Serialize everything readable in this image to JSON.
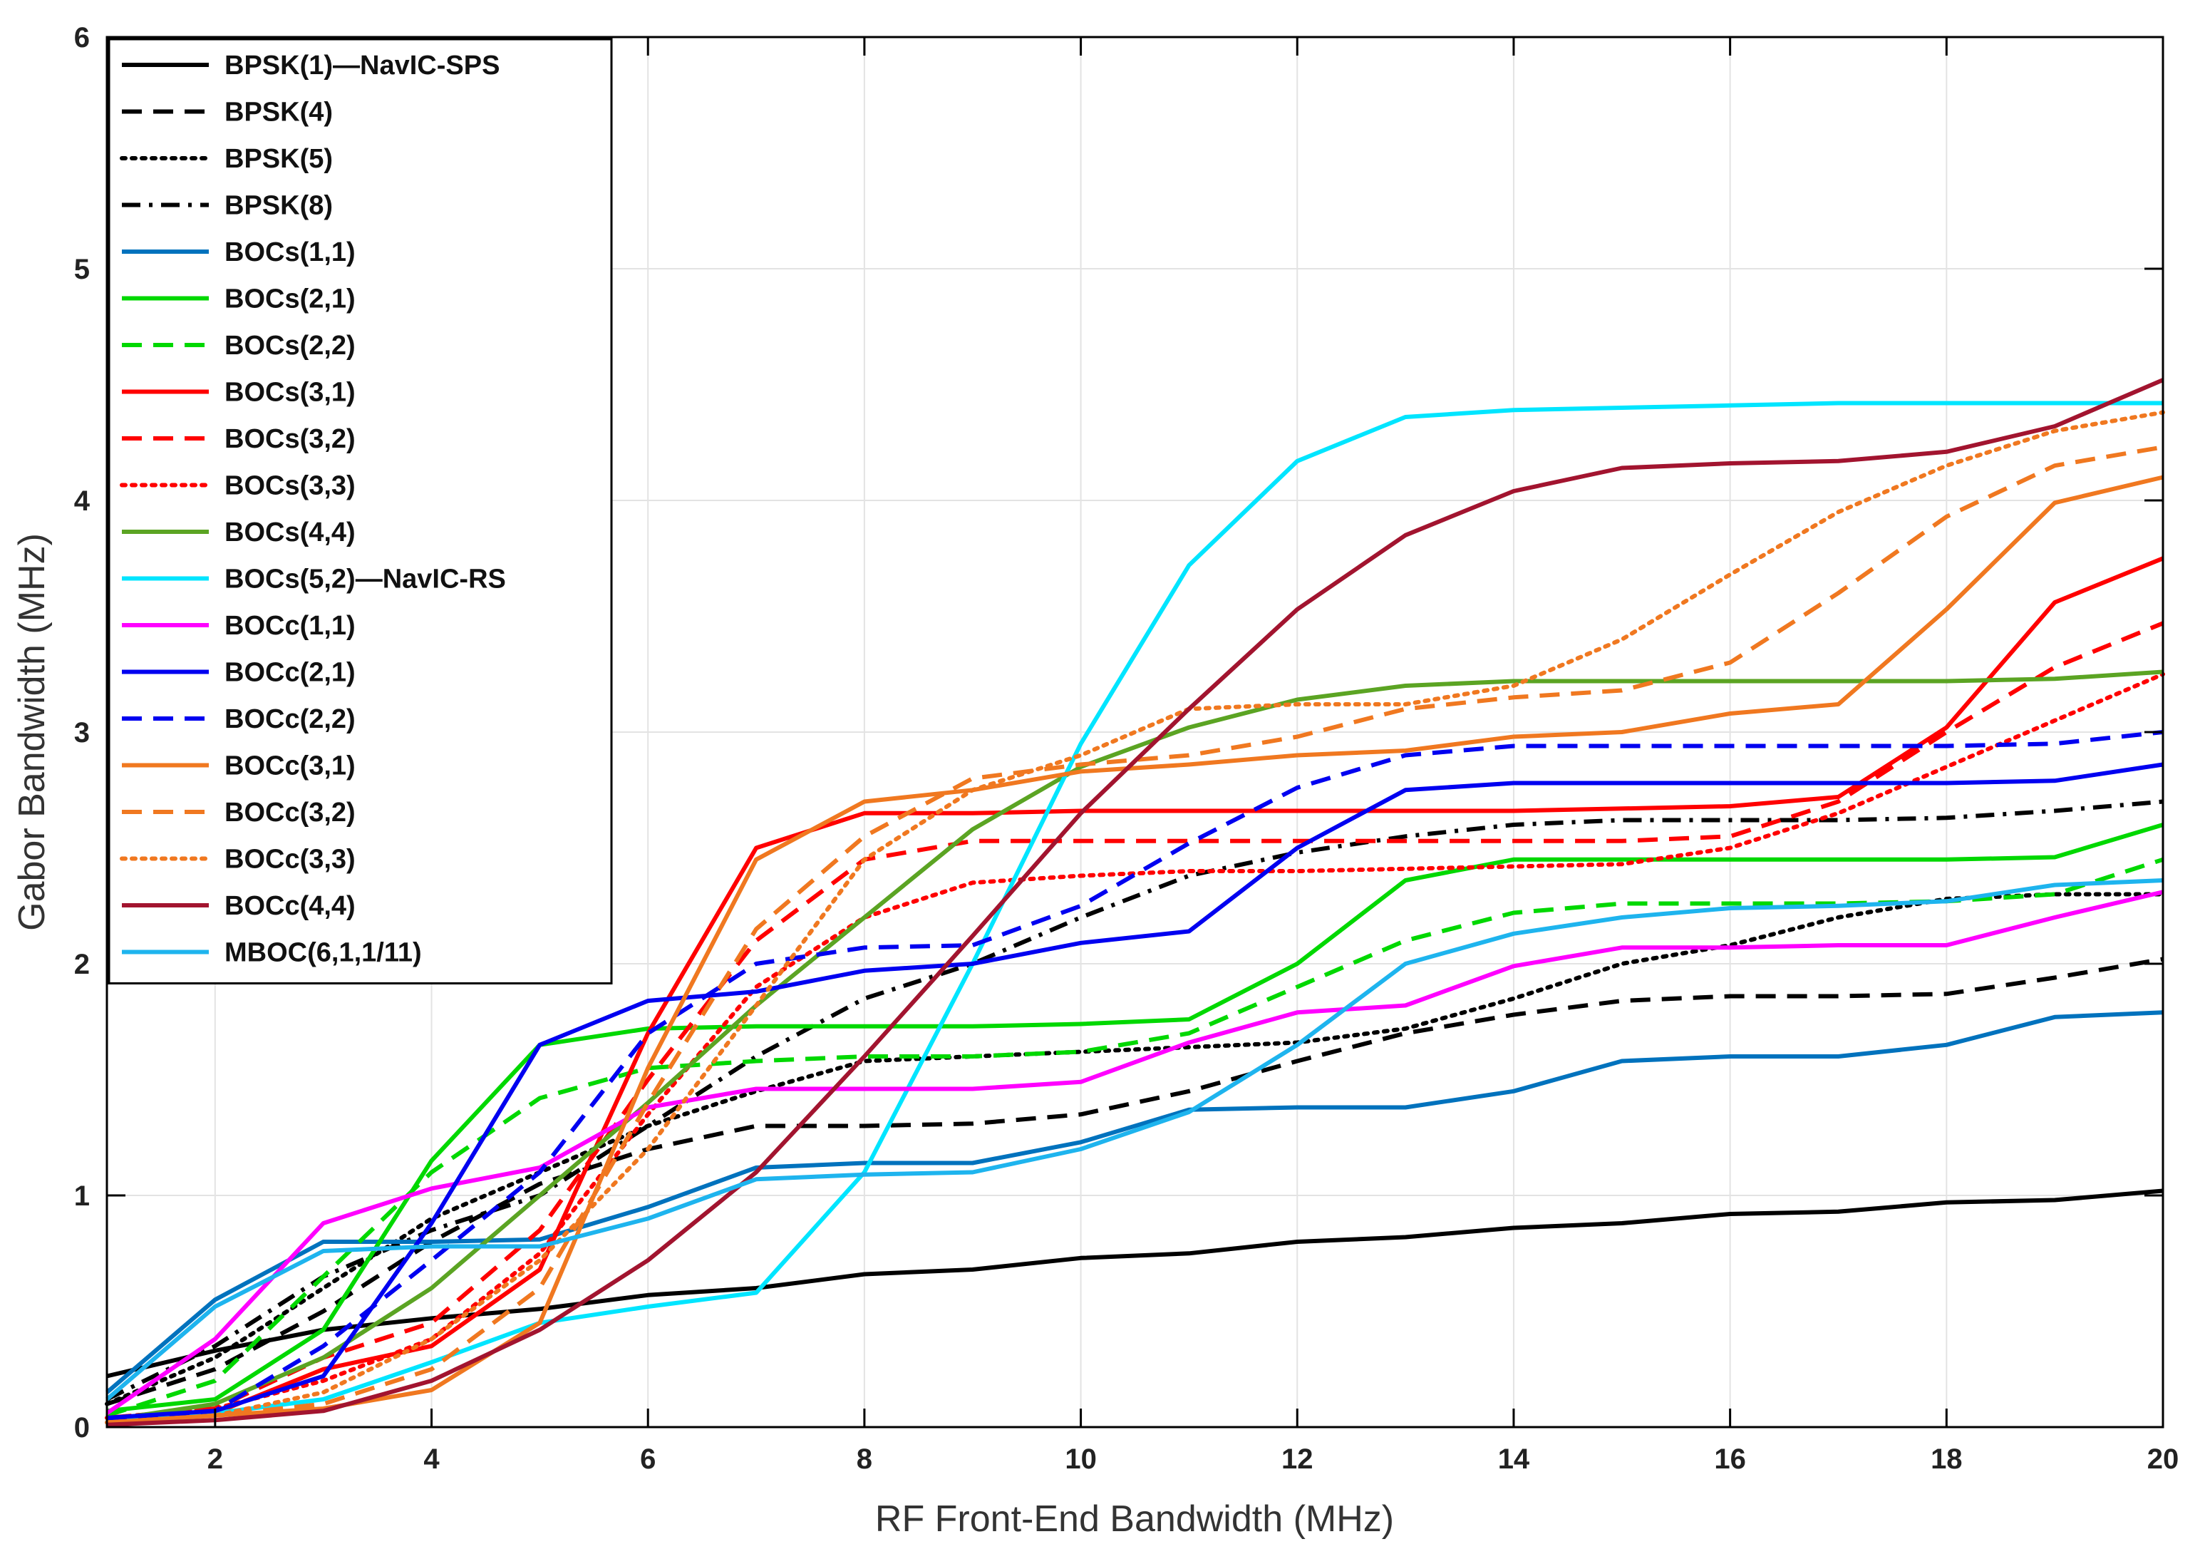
{
  "chart_data": {
    "type": "line",
    "title": "",
    "xlabel": "RF Front-End Bandwidth (MHz)",
    "ylabel": "Gabor Bandwidth (MHz)",
    "xlim": [
      1,
      20
    ],
    "ylim": [
      0,
      6
    ],
    "xticks": [
      2,
      4,
      6,
      8,
      10,
      12,
      14,
      16,
      18,
      20
    ],
    "yticks": [
      0,
      1,
      2,
      3,
      4,
      5,
      6
    ],
    "grid": true,
    "legend_position": "top-left",
    "x": [
      1,
      2,
      3,
      4,
      5,
      6,
      7,
      8,
      9,
      10,
      11,
      12,
      13,
      14,
      15,
      16,
      17,
      18,
      19,
      20
    ],
    "series": [
      {
        "name": "BPSK(1)—NavIC-SPS",
        "color": "#000000",
        "dash": "solid",
        "values": [
          0.22,
          0.33,
          0.42,
          0.47,
          0.51,
          0.57,
          0.6,
          0.66,
          0.68,
          0.73,
          0.75,
          0.8,
          0.82,
          0.86,
          0.88,
          0.92,
          0.93,
          0.97,
          0.98,
          1.02
        ]
      },
      {
        "name": "BPSK(4)",
        "color": "#000000",
        "dash": "dashed",
        "values": [
          0.1,
          0.25,
          0.5,
          0.8,
          1.05,
          1.2,
          1.3,
          1.3,
          1.31,
          1.35,
          1.45,
          1.58,
          1.7,
          1.78,
          1.84,
          1.86,
          1.86,
          1.87,
          1.94,
          2.02
        ]
      },
      {
        "name": "BPSK(5)",
        "color": "#000000",
        "dash": "dotted",
        "values": [
          0.1,
          0.3,
          0.6,
          0.9,
          1.1,
          1.3,
          1.45,
          1.58,
          1.6,
          1.62,
          1.64,
          1.66,
          1.72,
          1.85,
          2.0,
          2.08,
          2.2,
          2.28,
          2.3,
          2.3
        ]
      },
      {
        "name": "BPSK(8)",
        "color": "#000000",
        "dash": "dashdot",
        "values": [
          0.12,
          0.35,
          0.65,
          0.85,
          1.0,
          1.3,
          1.6,
          1.85,
          2.0,
          2.2,
          2.38,
          2.48,
          2.55,
          2.6,
          2.62,
          2.62,
          2.62,
          2.63,
          2.66,
          2.7
        ]
      },
      {
        "name": "BOCs(1,1)",
        "color": "#0072BD",
        "dash": "solid",
        "values": [
          0.15,
          0.55,
          0.8,
          0.8,
          0.81,
          0.95,
          1.12,
          1.14,
          1.14,
          1.23,
          1.37,
          1.38,
          1.38,
          1.45,
          1.58,
          1.6,
          1.6,
          1.65,
          1.77,
          1.79
        ]
      },
      {
        "name": "BOCs(2,1)",
        "color": "#00D800",
        "dash": "solid",
        "values": [
          0.07,
          0.12,
          0.42,
          1.15,
          1.65,
          1.72,
          1.73,
          1.73,
          1.73,
          1.74,
          1.76,
          2.0,
          2.36,
          2.45,
          2.45,
          2.45,
          2.45,
          2.45,
          2.46,
          2.6
        ]
      },
      {
        "name": "BOCs(2,2)",
        "color": "#00D800",
        "dash": "dashed",
        "values": [
          0.05,
          0.2,
          0.65,
          1.1,
          1.42,
          1.55,
          1.58,
          1.6,
          1.6,
          1.62,
          1.7,
          1.9,
          2.1,
          2.22,
          2.26,
          2.26,
          2.26,
          2.27,
          2.3,
          2.45
        ]
      },
      {
        "name": "BOCs(3,1)",
        "color": "#FF0000",
        "dash": "solid",
        "values": [
          0.04,
          0.06,
          0.25,
          0.35,
          0.68,
          1.7,
          2.5,
          2.65,
          2.65,
          2.66,
          2.66,
          2.66,
          2.66,
          2.66,
          2.67,
          2.68,
          2.72,
          3.02,
          3.56,
          3.75
        ]
      },
      {
        "name": "BOCs(3,2)",
        "color": "#FF0000",
        "dash": "dashed",
        "values": [
          0.04,
          0.08,
          0.3,
          0.45,
          0.85,
          1.5,
          2.1,
          2.45,
          2.53,
          2.53,
          2.53,
          2.53,
          2.53,
          2.53,
          2.53,
          2.55,
          2.7,
          3.0,
          3.28,
          3.47
        ]
      },
      {
        "name": "BOCs(3,3)",
        "color": "#FF0000",
        "dash": "dotted",
        "values": [
          0.04,
          0.08,
          0.2,
          0.38,
          0.75,
          1.35,
          1.9,
          2.2,
          2.35,
          2.38,
          2.4,
          2.4,
          2.41,
          2.42,
          2.43,
          2.5,
          2.65,
          2.85,
          3.05,
          3.25
        ]
      },
      {
        "name": "BOCs(4,4)",
        "color": "#5BA423",
        "dash": "solid",
        "values": [
          0.03,
          0.1,
          0.3,
          0.6,
          1.0,
          1.4,
          1.82,
          2.2,
          2.58,
          2.85,
          3.02,
          3.14,
          3.2,
          3.22,
          3.22,
          3.22,
          3.22,
          3.22,
          3.23,
          3.26
        ]
      },
      {
        "name": "BOCs(5,2)—NavIC-RS",
        "color": "#00E5FF",
        "dash": "solid",
        "values": [
          0.04,
          0.06,
          0.12,
          0.28,
          0.45,
          0.52,
          0.58,
          1.1,
          2.0,
          2.95,
          3.72,
          4.17,
          4.36,
          4.39,
          4.4,
          4.41,
          4.42,
          4.42,
          4.42,
          4.42
        ]
      },
      {
        "name": "BOCc(1,1)",
        "color": "#FF00FF",
        "dash": "solid",
        "values": [
          0.06,
          0.38,
          0.88,
          1.03,
          1.12,
          1.38,
          1.46,
          1.46,
          1.46,
          1.49,
          1.66,
          1.79,
          1.82,
          1.99,
          2.07,
          2.07,
          2.08,
          2.08,
          2.2,
          2.31
        ]
      },
      {
        "name": "BOCc(2,1)",
        "color": "#0000F0",
        "dash": "solid",
        "values": [
          0.04,
          0.07,
          0.22,
          0.88,
          1.65,
          1.84,
          1.88,
          1.97,
          2.0,
          2.09,
          2.14,
          2.5,
          2.75,
          2.78,
          2.78,
          2.78,
          2.78,
          2.78,
          2.79,
          2.86
        ]
      },
      {
        "name": "BOCc(2,2)",
        "color": "#0000F0",
        "dash": "dashed",
        "values": [
          0.03,
          0.07,
          0.35,
          0.72,
          1.1,
          1.7,
          2.0,
          2.07,
          2.08,
          2.25,
          2.52,
          2.76,
          2.9,
          2.94,
          2.94,
          2.94,
          2.94,
          2.94,
          2.95,
          3.0
        ]
      },
      {
        "name": "BOCc(3,1)",
        "color": "#F07820",
        "dash": "solid",
        "values": [
          0.02,
          0.05,
          0.08,
          0.16,
          0.45,
          1.55,
          2.45,
          2.7,
          2.75,
          2.83,
          2.86,
          2.9,
          2.92,
          2.98,
          3.0,
          3.08,
          3.12,
          3.53,
          3.99,
          4.1
        ]
      },
      {
        "name": "BOCc(3,2)",
        "color": "#F07820",
        "dash": "dashed",
        "values": [
          0.02,
          0.05,
          0.1,
          0.25,
          0.6,
          1.4,
          2.15,
          2.55,
          2.8,
          2.86,
          2.9,
          2.98,
          3.1,
          3.15,
          3.18,
          3.3,
          3.6,
          3.93,
          4.15,
          4.23
        ]
      },
      {
        "name": "BOCc(3,3)",
        "color": "#F07820",
        "dash": "dotted",
        "values": [
          0.02,
          0.05,
          0.15,
          0.38,
          0.72,
          1.2,
          1.82,
          2.45,
          2.75,
          2.9,
          3.1,
          3.12,
          3.12,
          3.2,
          3.4,
          3.68,
          3.95,
          4.15,
          4.3,
          4.38
        ]
      },
      {
        "name": "BOCc(4,4)",
        "color": "#A2142F",
        "dash": "solid",
        "values": [
          0.01,
          0.03,
          0.07,
          0.2,
          0.42,
          0.72,
          1.1,
          1.6,
          2.12,
          2.65,
          3.1,
          3.53,
          3.85,
          4.04,
          4.14,
          4.16,
          4.17,
          4.21,
          4.32,
          4.52
        ]
      },
      {
        "name": "MBOC(6,1,1/11)",
        "color": "#1EB4EE",
        "dash": "solid",
        "values": [
          0.12,
          0.52,
          0.76,
          0.78,
          0.78,
          0.9,
          1.07,
          1.09,
          1.1,
          1.2,
          1.36,
          1.65,
          2.0,
          2.13,
          2.2,
          2.24,
          2.25,
          2.27,
          2.34,
          2.36
        ]
      }
    ]
  }
}
